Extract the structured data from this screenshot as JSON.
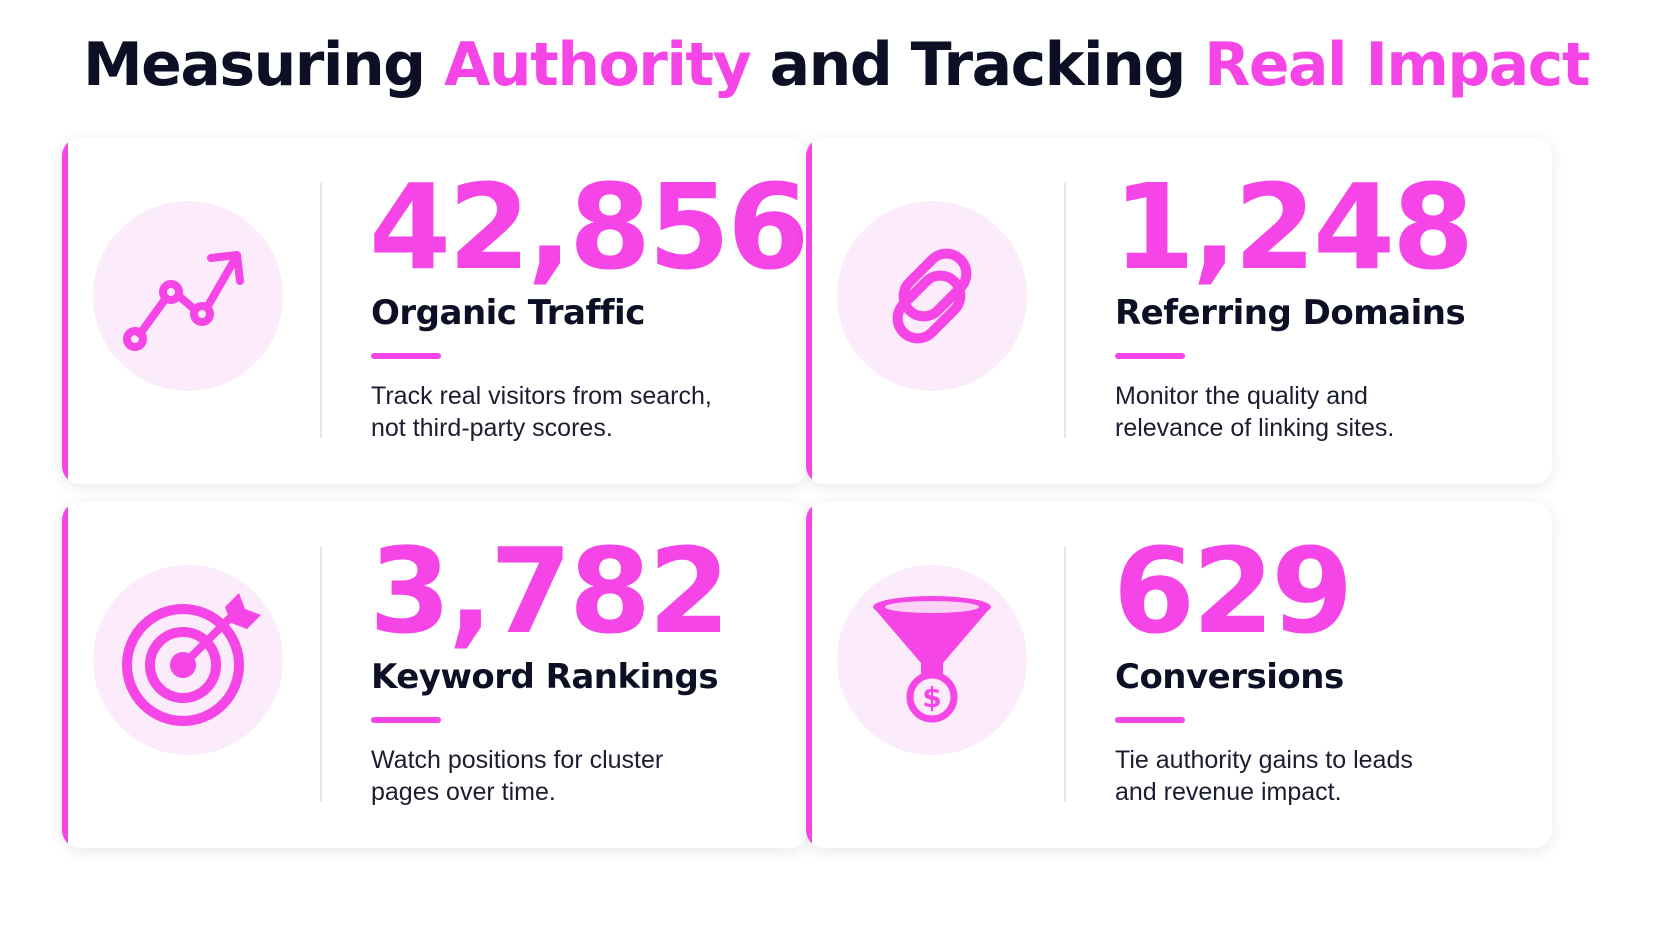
{
  "title": {
    "part1": "Measuring",
    "part2": "Authority",
    "part3": "and Tracking",
    "part4": "Real Impact"
  },
  "colors": {
    "accent": "#f545e6",
    "dark": "#0d0f24",
    "icon_circle_bg": "#fcebfa",
    "card_bg": "#ffffff"
  },
  "cards": [
    {
      "icon": "trend-up-icon",
      "value": "42,856",
      "label": "Organic Traffic",
      "desc_line1": "Track real visitors from search,",
      "desc_line2": "not third-party scores."
    },
    {
      "icon": "link-chain-icon",
      "value": "1,248",
      "label": "Referring Domains",
      "desc_line1": "Monitor the quality and",
      "desc_line2": "relevance of linking sites."
    },
    {
      "icon": "target-icon",
      "value": "3,782",
      "label": "Keyword Rankings",
      "desc_line1": "Watch positions for cluster",
      "desc_line2": "pages over time."
    },
    {
      "icon": "funnel-dollar-icon",
      "value": "629",
      "label": "Conversions",
      "desc_line1": "Tie authority gains to leads",
      "desc_line2": "and revenue impact."
    }
  ]
}
